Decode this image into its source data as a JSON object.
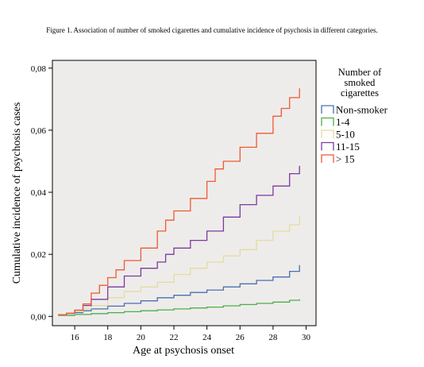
{
  "caption": "Figure 1. Association of number of smoked cigarettes and cumulative incidence of psychosis in different categories.",
  "chart_data": {
    "type": "line",
    "step": true,
    "xlabel": "Age at psychosis onset",
    "ylabel": "Cumulative incidence of psychosis cases",
    "xlim": [
      14.65,
      30.6
    ],
    "ylim": [
      -0.003,
      0.0825
    ],
    "xticks": [
      16,
      18,
      20,
      22,
      24,
      26,
      28,
      30
    ],
    "xtick_labels": [
      "16",
      "18",
      "20",
      "22",
      "24",
      "26",
      "28",
      "30"
    ],
    "yticks": [
      0.0,
      0.02,
      0.04,
      0.06,
      0.08
    ],
    "ytick_labels": [
      "0,00",
      "0,02",
      "0,04",
      "0,06",
      "0,08"
    ],
    "grid": false,
    "plot_background": "#eeecea",
    "legend_title_lines": [
      "Number of",
      "smoked",
      "cigarettes"
    ],
    "legend_position": "right",
    "series": [
      {
        "name": "Non-smoker",
        "color": "#4a6fb2",
        "x": [
          15.0,
          15.5,
          16.0,
          16.5,
          17.0,
          18.0,
          19.0,
          20.0,
          21.0,
          22.0,
          23.0,
          24.0,
          25.0,
          26.0,
          27.0,
          28.0,
          29.0,
          29.6
        ],
        "y": [
          0.0005,
          0.0007,
          0.0012,
          0.0018,
          0.0024,
          0.0033,
          0.0042,
          0.005,
          0.006,
          0.0068,
          0.0077,
          0.0085,
          0.0095,
          0.0105,
          0.0116,
          0.0127,
          0.0145,
          0.0165
        ]
      },
      {
        "name": "1-4",
        "color": "#4cae4c",
        "x": [
          15.0,
          16.0,
          17.0,
          18.0,
          19.0,
          20.0,
          21.0,
          22.0,
          23.0,
          24.0,
          25.0,
          26.0,
          27.0,
          28.0,
          29.0,
          29.6
        ],
        "y": [
          0.0003,
          0.0006,
          0.0009,
          0.0012,
          0.0015,
          0.0018,
          0.0021,
          0.0024,
          0.0027,
          0.003,
          0.0034,
          0.0038,
          0.0042,
          0.0046,
          0.0052,
          0.0055
        ]
      },
      {
        "name": "5-10",
        "color": "#e2dca0",
        "x": [
          15.0,
          15.5,
          16.0,
          16.5,
          17.0,
          18.0,
          19.0,
          20.0,
          21.0,
          22.0,
          23.0,
          24.0,
          25.0,
          26.0,
          27.0,
          28.0,
          29.0,
          29.6
        ],
        "y": [
          0.0005,
          0.0008,
          0.0015,
          0.0025,
          0.0035,
          0.006,
          0.008,
          0.0095,
          0.011,
          0.0135,
          0.0155,
          0.0175,
          0.0195,
          0.0215,
          0.0245,
          0.0275,
          0.0295,
          0.0325
        ]
      },
      {
        "name": "11-15",
        "color": "#7b3aa0",
        "x": [
          15.0,
          15.5,
          16.0,
          16.5,
          17.0,
          18.0,
          19.0,
          20.0,
          21.0,
          21.5,
          22.0,
          23.0,
          24.0,
          25.0,
          26.0,
          27.0,
          28.0,
          29.0,
          29.6
        ],
        "y": [
          0.0005,
          0.001,
          0.002,
          0.0035,
          0.0055,
          0.0095,
          0.013,
          0.0155,
          0.0175,
          0.02,
          0.022,
          0.0245,
          0.0275,
          0.032,
          0.036,
          0.039,
          0.042,
          0.046,
          0.0485
        ]
      },
      {
        "name": "> 15",
        "color": "#ee5a33",
        "x": [
          15.0,
          15.5,
          16.0,
          16.5,
          17.0,
          17.5,
          18.0,
          18.5,
          19.0,
          20.0,
          21.0,
          21.5,
          22.0,
          23.0,
          24.0,
          24.5,
          25.0,
          26.0,
          27.0,
          28.0,
          28.5,
          29.0,
          29.6
        ],
        "y": [
          0.0005,
          0.001,
          0.002,
          0.004,
          0.0075,
          0.01,
          0.0125,
          0.015,
          0.018,
          0.022,
          0.0275,
          0.031,
          0.034,
          0.038,
          0.0435,
          0.0475,
          0.05,
          0.0545,
          0.059,
          0.0645,
          0.067,
          0.0705,
          0.0735
        ]
      }
    ]
  }
}
